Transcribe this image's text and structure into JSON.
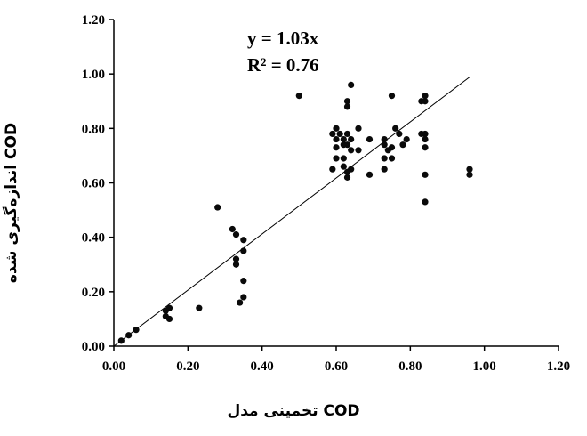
{
  "chart_data": {
    "type": "scatter",
    "xlabel": "COD تخمینی مدل",
    "ylabel": "COD اندازه‌گیری شده",
    "xlim": [
      0.0,
      1.2
    ],
    "ylim": [
      0.0,
      1.2
    ],
    "x_ticks": [
      "0.00",
      "0.20",
      "0.40",
      "0.60",
      "0.80",
      "1.00",
      "1.20"
    ],
    "y_ticks": [
      "0.00",
      "0.20",
      "0.40",
      "0.60",
      "0.80",
      "1.00",
      "1.20"
    ],
    "grid": false,
    "legend": "none",
    "trendline": {
      "equation_label": "y = 1.03x",
      "r2_label": "R² = 0.76",
      "slope": 1.03,
      "x_range": [
        0.0,
        0.96
      ]
    },
    "series": [
      {
        "marker_color": "#0a0a0a",
        "points": [
          [
            0.02,
            0.02
          ],
          [
            0.04,
            0.04
          ],
          [
            0.06,
            0.06
          ],
          [
            0.14,
            0.11
          ],
          [
            0.14,
            0.13
          ],
          [
            0.15,
            0.1
          ],
          [
            0.15,
            0.14
          ],
          [
            0.23,
            0.14
          ],
          [
            0.28,
            0.51
          ],
          [
            0.32,
            0.43
          ],
          [
            0.33,
            0.41
          ],
          [
            0.33,
            0.32
          ],
          [
            0.33,
            0.3
          ],
          [
            0.34,
            0.16
          ],
          [
            0.35,
            0.39
          ],
          [
            0.35,
            0.35
          ],
          [
            0.35,
            0.24
          ],
          [
            0.35,
            0.18
          ],
          [
            0.5,
            0.92
          ],
          [
            0.59,
            0.65
          ],
          [
            0.59,
            0.78
          ],
          [
            0.6,
            0.8
          ],
          [
            0.6,
            0.76
          ],
          [
            0.6,
            0.73
          ],
          [
            0.6,
            0.69
          ],
          [
            0.61,
            0.78
          ],
          [
            0.62,
            0.74
          ],
          [
            0.62,
            0.69
          ],
          [
            0.62,
            0.66
          ],
          [
            0.62,
            0.76
          ],
          [
            0.63,
            0.9
          ],
          [
            0.63,
            0.88
          ],
          [
            0.63,
            0.78
          ],
          [
            0.63,
            0.74
          ],
          [
            0.63,
            0.64
          ],
          [
            0.63,
            0.62
          ],
          [
            0.64,
            0.96
          ],
          [
            0.64,
            0.76
          ],
          [
            0.64,
            0.72
          ],
          [
            0.64,
            0.65
          ],
          [
            0.66,
            0.8
          ],
          [
            0.66,
            0.72
          ],
          [
            0.69,
            0.76
          ],
          [
            0.69,
            0.63
          ],
          [
            0.73,
            0.76
          ],
          [
            0.73,
            0.74
          ],
          [
            0.73,
            0.69
          ],
          [
            0.73,
            0.65
          ],
          [
            0.74,
            0.72
          ],
          [
            0.75,
            0.92
          ],
          [
            0.75,
            0.73
          ],
          [
            0.75,
            0.69
          ],
          [
            0.76,
            0.8
          ],
          [
            0.77,
            0.78
          ],
          [
            0.78,
            0.74
          ],
          [
            0.79,
            0.76
          ],
          [
            0.83,
            0.9
          ],
          [
            0.83,
            0.78
          ],
          [
            0.84,
            0.92
          ],
          [
            0.84,
            0.9
          ],
          [
            0.84,
            0.78
          ],
          [
            0.84,
            0.76
          ],
          [
            0.84,
            0.73
          ],
          [
            0.84,
            0.63
          ],
          [
            0.84,
            0.53
          ],
          [
            0.96,
            0.65
          ],
          [
            0.96,
            0.63
          ]
        ]
      }
    ]
  }
}
